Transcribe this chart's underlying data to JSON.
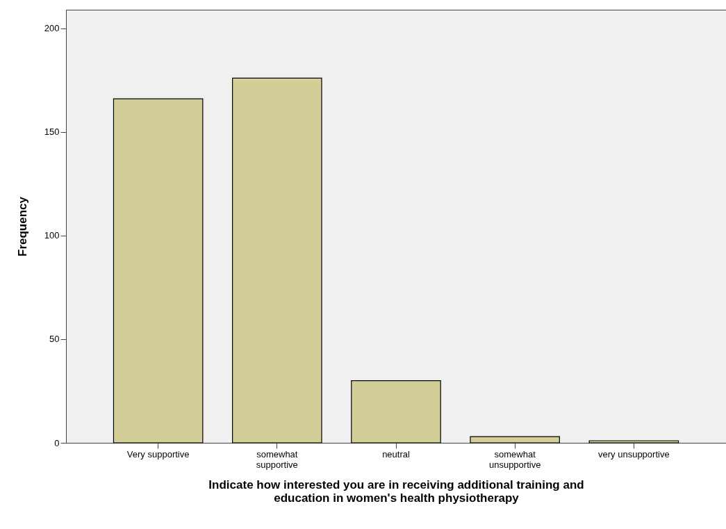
{
  "chart_data": {
    "type": "bar",
    "xlabel": "Indicate how interested you are in receiving additional training and\neducation in women's health physiotherapy",
    "ylabel": "Frequency",
    "categories": [
      "Very supportive",
      "somewhat\nsupportive",
      "neutral",
      "somewhat\nunsupportive",
      "very unsupportive"
    ],
    "values": [
      166,
      176,
      30,
      3,
      1
    ],
    "color": "#d3ce97",
    "ylim": [
      0,
      209
    ],
    "yticks": [
      0,
      50,
      100,
      150,
      200
    ],
    "grid": false
  }
}
